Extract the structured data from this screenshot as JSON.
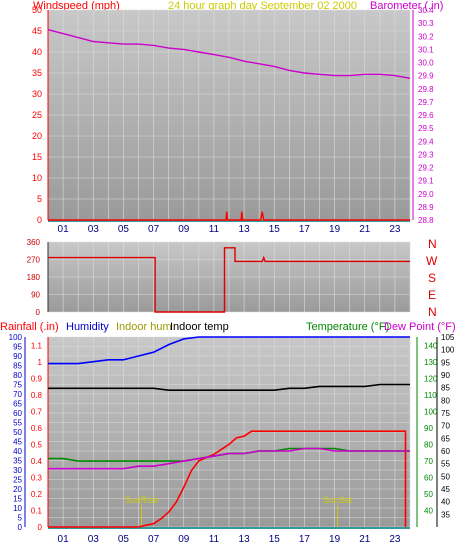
{
  "header": {
    "left": "Windspeed (mph)",
    "center": "24 hour graph day  September 02 2000",
    "right": "Barometer (.in)"
  },
  "hour_ticks": [
    "01",
    "03",
    "05",
    "07",
    "09",
    "11",
    "13",
    "15",
    "17",
    "19",
    "21",
    "23"
  ],
  "direction_letters": [
    "N",
    "W",
    "S",
    "E",
    "N"
  ],
  "bottom_legend": {
    "rainfall": "Rainfall (.in)",
    "humidity": "Humidity",
    "indoor_hum": "Indoor hum",
    "indoor_temp": "Indoor temp",
    "temperature": "Temperature (°F)",
    "dew_point": "Dew Point (°F)"
  },
  "annotations": {
    "sunrise": "SunRise",
    "sunset": "SunSet"
  },
  "colors": {
    "windspeed": "#ff0000",
    "barometer": "#cc00cc",
    "direction": "#dd0000",
    "rainfall": "#ff0000",
    "humidity": "#0000ff",
    "indoor_hum": "#999900",
    "indoor_temp": "#000000",
    "temperature": "#008800",
    "dew_point": "#cc00cc",
    "sun": "#cccc00",
    "axis_teal": "#339999",
    "panel_bg": "#bdbdbd"
  },
  "chart_data": [
    {
      "type": "line",
      "name": "windspeed-barometer",
      "xlim": [
        0,
        24
      ],
      "y_left": {
        "label": "Windspeed (mph)",
        "lim": [
          0,
          50
        ],
        "ticks": [
          0,
          5,
          10,
          15,
          20,
          25,
          30,
          35,
          40,
          45,
          50
        ]
      },
      "y_right": {
        "label": "Barometer (.in)",
        "lim": [
          28.8,
          30.4
        ],
        "ticks": [
          "28.8",
          "28.9",
          "29.0",
          "29.1",
          "29.2",
          "29.3",
          "29.4",
          "29.5",
          "29.6",
          "29.7",
          "29.8",
          "29.9",
          "30.0",
          "30.1",
          "30.2",
          "30.3",
          "30.4"
        ]
      },
      "series": [
        {
          "name": "Barometer",
          "axis": "right",
          "x": [
            0,
            1,
            2,
            3,
            4,
            5,
            6,
            7,
            8,
            9,
            10,
            11,
            12,
            13,
            14,
            15,
            16,
            17,
            18,
            19,
            20,
            21,
            22,
            23,
            24
          ],
          "y": [
            30.25,
            30.22,
            30.19,
            30.16,
            30.15,
            30.14,
            30.14,
            30.13,
            30.11,
            30.1,
            30.08,
            30.06,
            30.04,
            30.01,
            29.99,
            29.97,
            29.94,
            29.92,
            29.91,
            29.9,
            29.9,
            29.91,
            29.91,
            29.9,
            29.88
          ]
        },
        {
          "name": "Windspeed",
          "axis": "left",
          "x": [
            0,
            11.8,
            11.85,
            11.9,
            12.8,
            12.85,
            12.9,
            14.1,
            14.2,
            14.3,
            24
          ],
          "y": [
            0,
            0,
            2,
            0,
            0,
            2,
            0,
            0,
            2,
            0,
            0
          ]
        }
      ],
      "grid": true
    },
    {
      "type": "line",
      "name": "wind-direction",
      "xlim": [
        0,
        24
      ],
      "ylim": [
        0,
        360
      ],
      "yticks": [
        0,
        90,
        180,
        270,
        360
      ],
      "series": [
        {
          "name": "Direction",
          "x": [
            0,
            7.1,
            7.1,
            11.7,
            11.7,
            12.4,
            12.4,
            14.2,
            14.3,
            14.4,
            24
          ],
          "y": [
            280,
            280,
            0,
            0,
            330,
            330,
            260,
            260,
            280,
            260,
            260
          ]
        }
      ],
      "grid": true
    },
    {
      "type": "line",
      "name": "rain-humidity-temperature",
      "xlim": [
        0,
        24
      ],
      "y_left": {
        "lim": [
          0,
          100
        ],
        "ticks": [
          0,
          5,
          10,
          15,
          20,
          25,
          30,
          35,
          40,
          45,
          50,
          55,
          60,
          65,
          70,
          75,
          80,
          85,
          90,
          95,
          100
        ]
      },
      "y_left_inner": {
        "lim": [
          0,
          1.15
        ],
        "ticks": [
          "0",
          "0.1",
          "0.2",
          "0.3",
          "0.4",
          "0.5",
          "0.6",
          "0.7",
          "0.8",
          "0.9",
          "1",
          "1.1"
        ]
      },
      "y_right": {
        "lim": [
          30,
          105
        ],
        "ticks": [
          35,
          40,
          45,
          50,
          55,
          60,
          65,
          70,
          75,
          80,
          85,
          90,
          95,
          100,
          105
        ]
      },
      "y_right_inner": {
        "lim": [
          30,
          145
        ],
        "ticks": [
          40,
          50,
          60,
          70,
          80,
          90,
          100,
          110,
          120,
          130,
          140
        ]
      },
      "annotations": [
        {
          "text": "SunRise",
          "x": 6.2
        },
        {
          "text": "SunSet",
          "x": 19.2
        }
      ],
      "series": [
        {
          "name": "Humidity",
          "axis": "left",
          "x": [
            0,
            1,
            2,
            3,
            4,
            5,
            6,
            7,
            8,
            9,
            10,
            11,
            12,
            13,
            14,
            15,
            16,
            17,
            18,
            19,
            20,
            21,
            22,
            23,
            24
          ],
          "y": [
            86,
            86,
            86,
            87,
            88,
            88,
            90,
            92,
            96,
            99,
            100,
            100,
            100,
            100,
            100,
            100,
            100,
            100,
            100,
            100,
            100,
            100,
            100,
            100,
            100
          ]
        },
        {
          "name": "Indoor temp",
          "axis": "left",
          "x": [
            0,
            1,
            2,
            3,
            4,
            5,
            6,
            7,
            8,
            9,
            10,
            11,
            12,
            13,
            14,
            15,
            16,
            17,
            18,
            19,
            20,
            21,
            22,
            23,
            24
          ],
          "y": [
            73,
            73,
            73,
            73,
            73,
            73,
            73,
            73,
            72,
            72,
            72,
            72,
            72,
            72,
            72,
            72,
            73,
            73,
            74,
            74,
            74,
            74,
            75,
            75,
            75
          ]
        },
        {
          "name": "Rainfall",
          "axis": "left_inner",
          "x": [
            0,
            6,
            6.5,
            7,
            7.5,
            8,
            8.5,
            9,
            9.5,
            10,
            10.5,
            11,
            11.5,
            12,
            12.5,
            13,
            13.5,
            14,
            15,
            16,
            17,
            18,
            19,
            20,
            21,
            22,
            23,
            23.7,
            23.7
          ],
          "y": [
            0,
            0,
            0.01,
            0.02,
            0.05,
            0.09,
            0.15,
            0.24,
            0.34,
            0.4,
            0.42,
            0.44,
            0.47,
            0.5,
            0.54,
            0.55,
            0.58,
            0.58,
            0.58,
            0.58,
            0.58,
            0.58,
            0.58,
            0.58,
            0.58,
            0.58,
            0.58,
            0.58,
            0
          ]
        },
        {
          "name": "Temperature",
          "axis": "right",
          "x": [
            0,
            1,
            2,
            3,
            4,
            5,
            6,
            7,
            8,
            9,
            10,
            11,
            12,
            13,
            14,
            15,
            16,
            17,
            18,
            19,
            20,
            21,
            22,
            23,
            24
          ],
          "y": [
            57,
            57,
            56,
            56,
            56,
            56,
            56,
            56,
            56,
            56,
            57,
            58,
            59,
            59,
            60,
            60,
            61,
            61,
            61,
            61,
            60,
            60,
            60,
            60,
            60
          ]
        },
        {
          "name": "Dew Point",
          "axis": "right",
          "x": [
            0,
            1,
            2,
            3,
            4,
            5,
            6,
            7,
            8,
            9,
            10,
            11,
            12,
            13,
            14,
            15,
            16,
            17,
            18,
            19,
            20,
            21,
            22,
            23,
            24
          ],
          "y": [
            53,
            53,
            53,
            53,
            53,
            53,
            54,
            54,
            55,
            56,
            57,
            58,
            59,
            59,
            60,
            60,
            60,
            61,
            61,
            60,
            60,
            60,
            60,
            60,
            60
          ]
        }
      ],
      "grid": true
    }
  ]
}
